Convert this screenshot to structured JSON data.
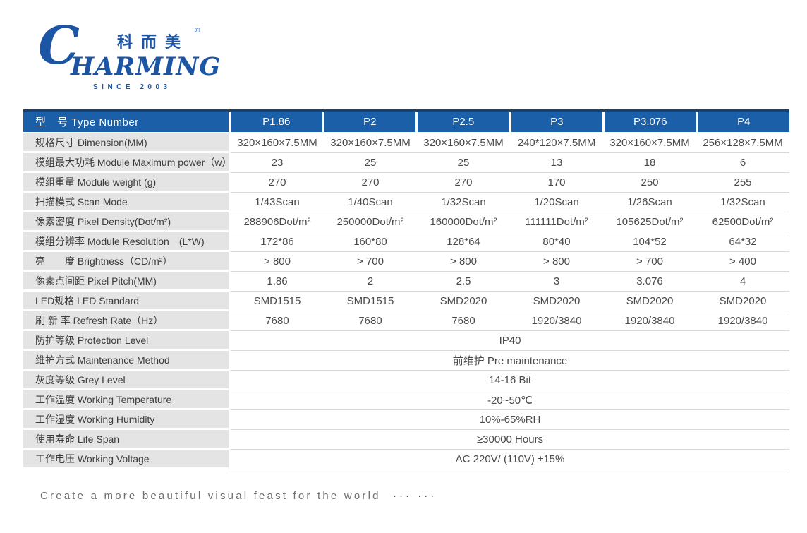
{
  "logo": {
    "brand_initial": "C",
    "brand_rest": "HARMING",
    "chinese_name": "科而美",
    "registered_mark": "®",
    "tagline": "SINCE 2003",
    "brand_color": "#1d55a5"
  },
  "table": {
    "header": {
      "label": "型　号 Type Number",
      "columns": [
        "P1.86",
        "P2",
        "P2.5",
        "P3",
        "P3.076",
        "P4"
      ],
      "header_bg": "#1a5fa8",
      "header_top_border": "#17416f"
    },
    "rows": [
      {
        "label": "规格尺寸 Dimension(MM)",
        "values": [
          "320×160×7.5MM",
          "320×160×7.5MM",
          "320×160×7.5MM",
          "240*120×7.5MM",
          "320×160×7.5MM",
          "256×128×7.5MM"
        ]
      },
      {
        "label": "模组最大功耗 Module Maximum power（w）",
        "values": [
          "23",
          "25",
          "25",
          "13",
          "18",
          "6"
        ]
      },
      {
        "label": "模组重量 Module weight (g)",
        "values": [
          "270",
          "270",
          "270",
          "170",
          "250",
          "255"
        ]
      },
      {
        "label": "扫描模式 Scan Mode",
        "values": [
          "1/43Scan",
          "1/40Scan",
          "1/32Scan",
          "1/20Scan",
          "1/26Scan",
          "1/32Scan"
        ]
      },
      {
        "label": "像素密度 Pixel Density(Dot/m²)",
        "values": [
          "288906Dot/m²",
          "250000Dot/m²",
          "160000Dot/m²",
          "111111Dot/m²",
          "105625Dot/m²",
          "62500Dot/m²"
        ]
      },
      {
        "label": "模组分辨率 Module Resolution　(L*W)",
        "values": [
          "172*86",
          "160*80",
          "128*64",
          "80*40",
          "104*52",
          "64*32"
        ]
      },
      {
        "label": "亮　　度 Brightness（CD/m²）",
        "values": [
          "> 800",
          "> 700",
          "> 800",
          "> 800",
          "> 700",
          "> 400"
        ]
      },
      {
        "label": "像素点间距 Pixel Pitch(MM)",
        "values": [
          "1.86",
          "2",
          "2.5",
          "3",
          "3.076",
          "4"
        ]
      },
      {
        "label": "LED规格 LED Standard",
        "values": [
          "SMD1515",
          "SMD1515",
          "SMD2020",
          "SMD2020",
          "SMD2020",
          "SMD2020"
        ]
      },
      {
        "label": "刷 新 率 Refresh Rate（Hz）",
        "values": [
          "7680",
          "7680",
          "7680",
          "1920/3840",
          "1920/3840",
          "1920/3840"
        ]
      },
      {
        "label": "防护等级 Protection Level",
        "span": "IP40"
      },
      {
        "label": "维护方式 Maintenance Method",
        "span": "前维护 Pre maintenance"
      },
      {
        "label": "灰度等级 Grey Level",
        "span": "14-16 Bit"
      },
      {
        "label": "工作温度 Working Temperature",
        "span": "-20~50℃"
      },
      {
        "label": "工作湿度 Working Humidity",
        "span": "10%-65%RH"
      },
      {
        "label": "使用寿命 Life Span",
        "span": "≥30000 Hours"
      },
      {
        "label": "工作电压 Working Voltage",
        "span": "AC 220V/ (110V) ±15%"
      }
    ]
  },
  "footer": {
    "text": "Create a more beautiful visual feast for the world",
    "dots": "··· ···"
  }
}
